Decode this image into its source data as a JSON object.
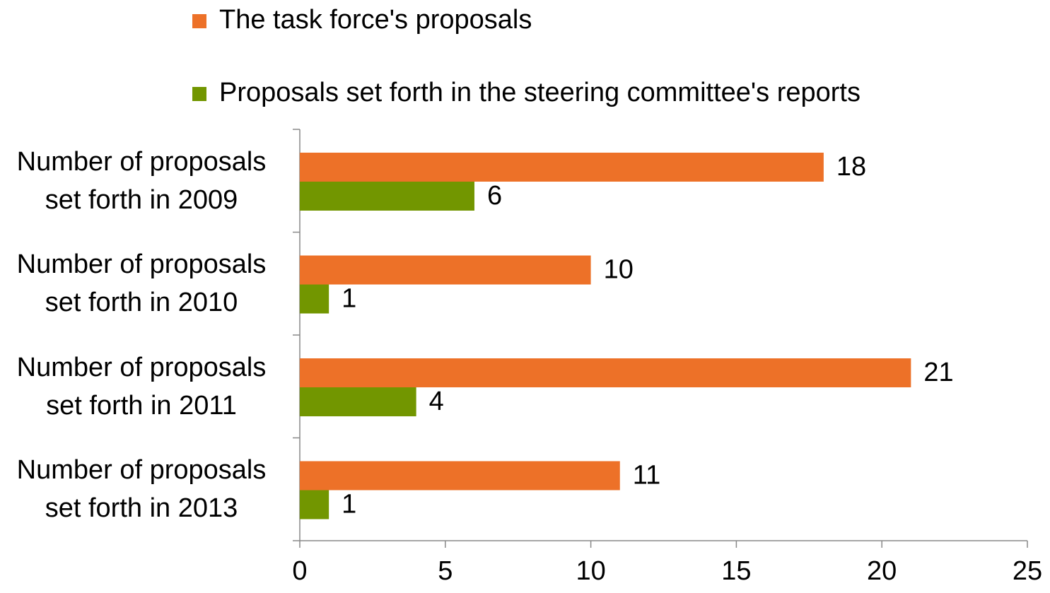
{
  "chart_data": {
    "type": "bar",
    "orientation": "horizontal",
    "categories": [
      "Number of proposals set forth in 2009",
      "Number of proposals set forth in 2010",
      "Number of proposals set forth in 2011",
      "Number of proposals set forth in 2013"
    ],
    "series": [
      {
        "name": "The task force's proposals",
        "color": "#ed7128",
        "values": [
          18,
          10,
          21,
          11
        ]
      },
      {
        "name": "Proposals set forth in the steering committee's reports",
        "color": "#729600",
        "values": [
          6,
          1,
          4,
          1
        ]
      }
    ],
    "xlim": [
      0,
      25
    ],
    "xticks": [
      0,
      5,
      10,
      15,
      20,
      25
    ],
    "grid": false,
    "legend": "top"
  }
}
